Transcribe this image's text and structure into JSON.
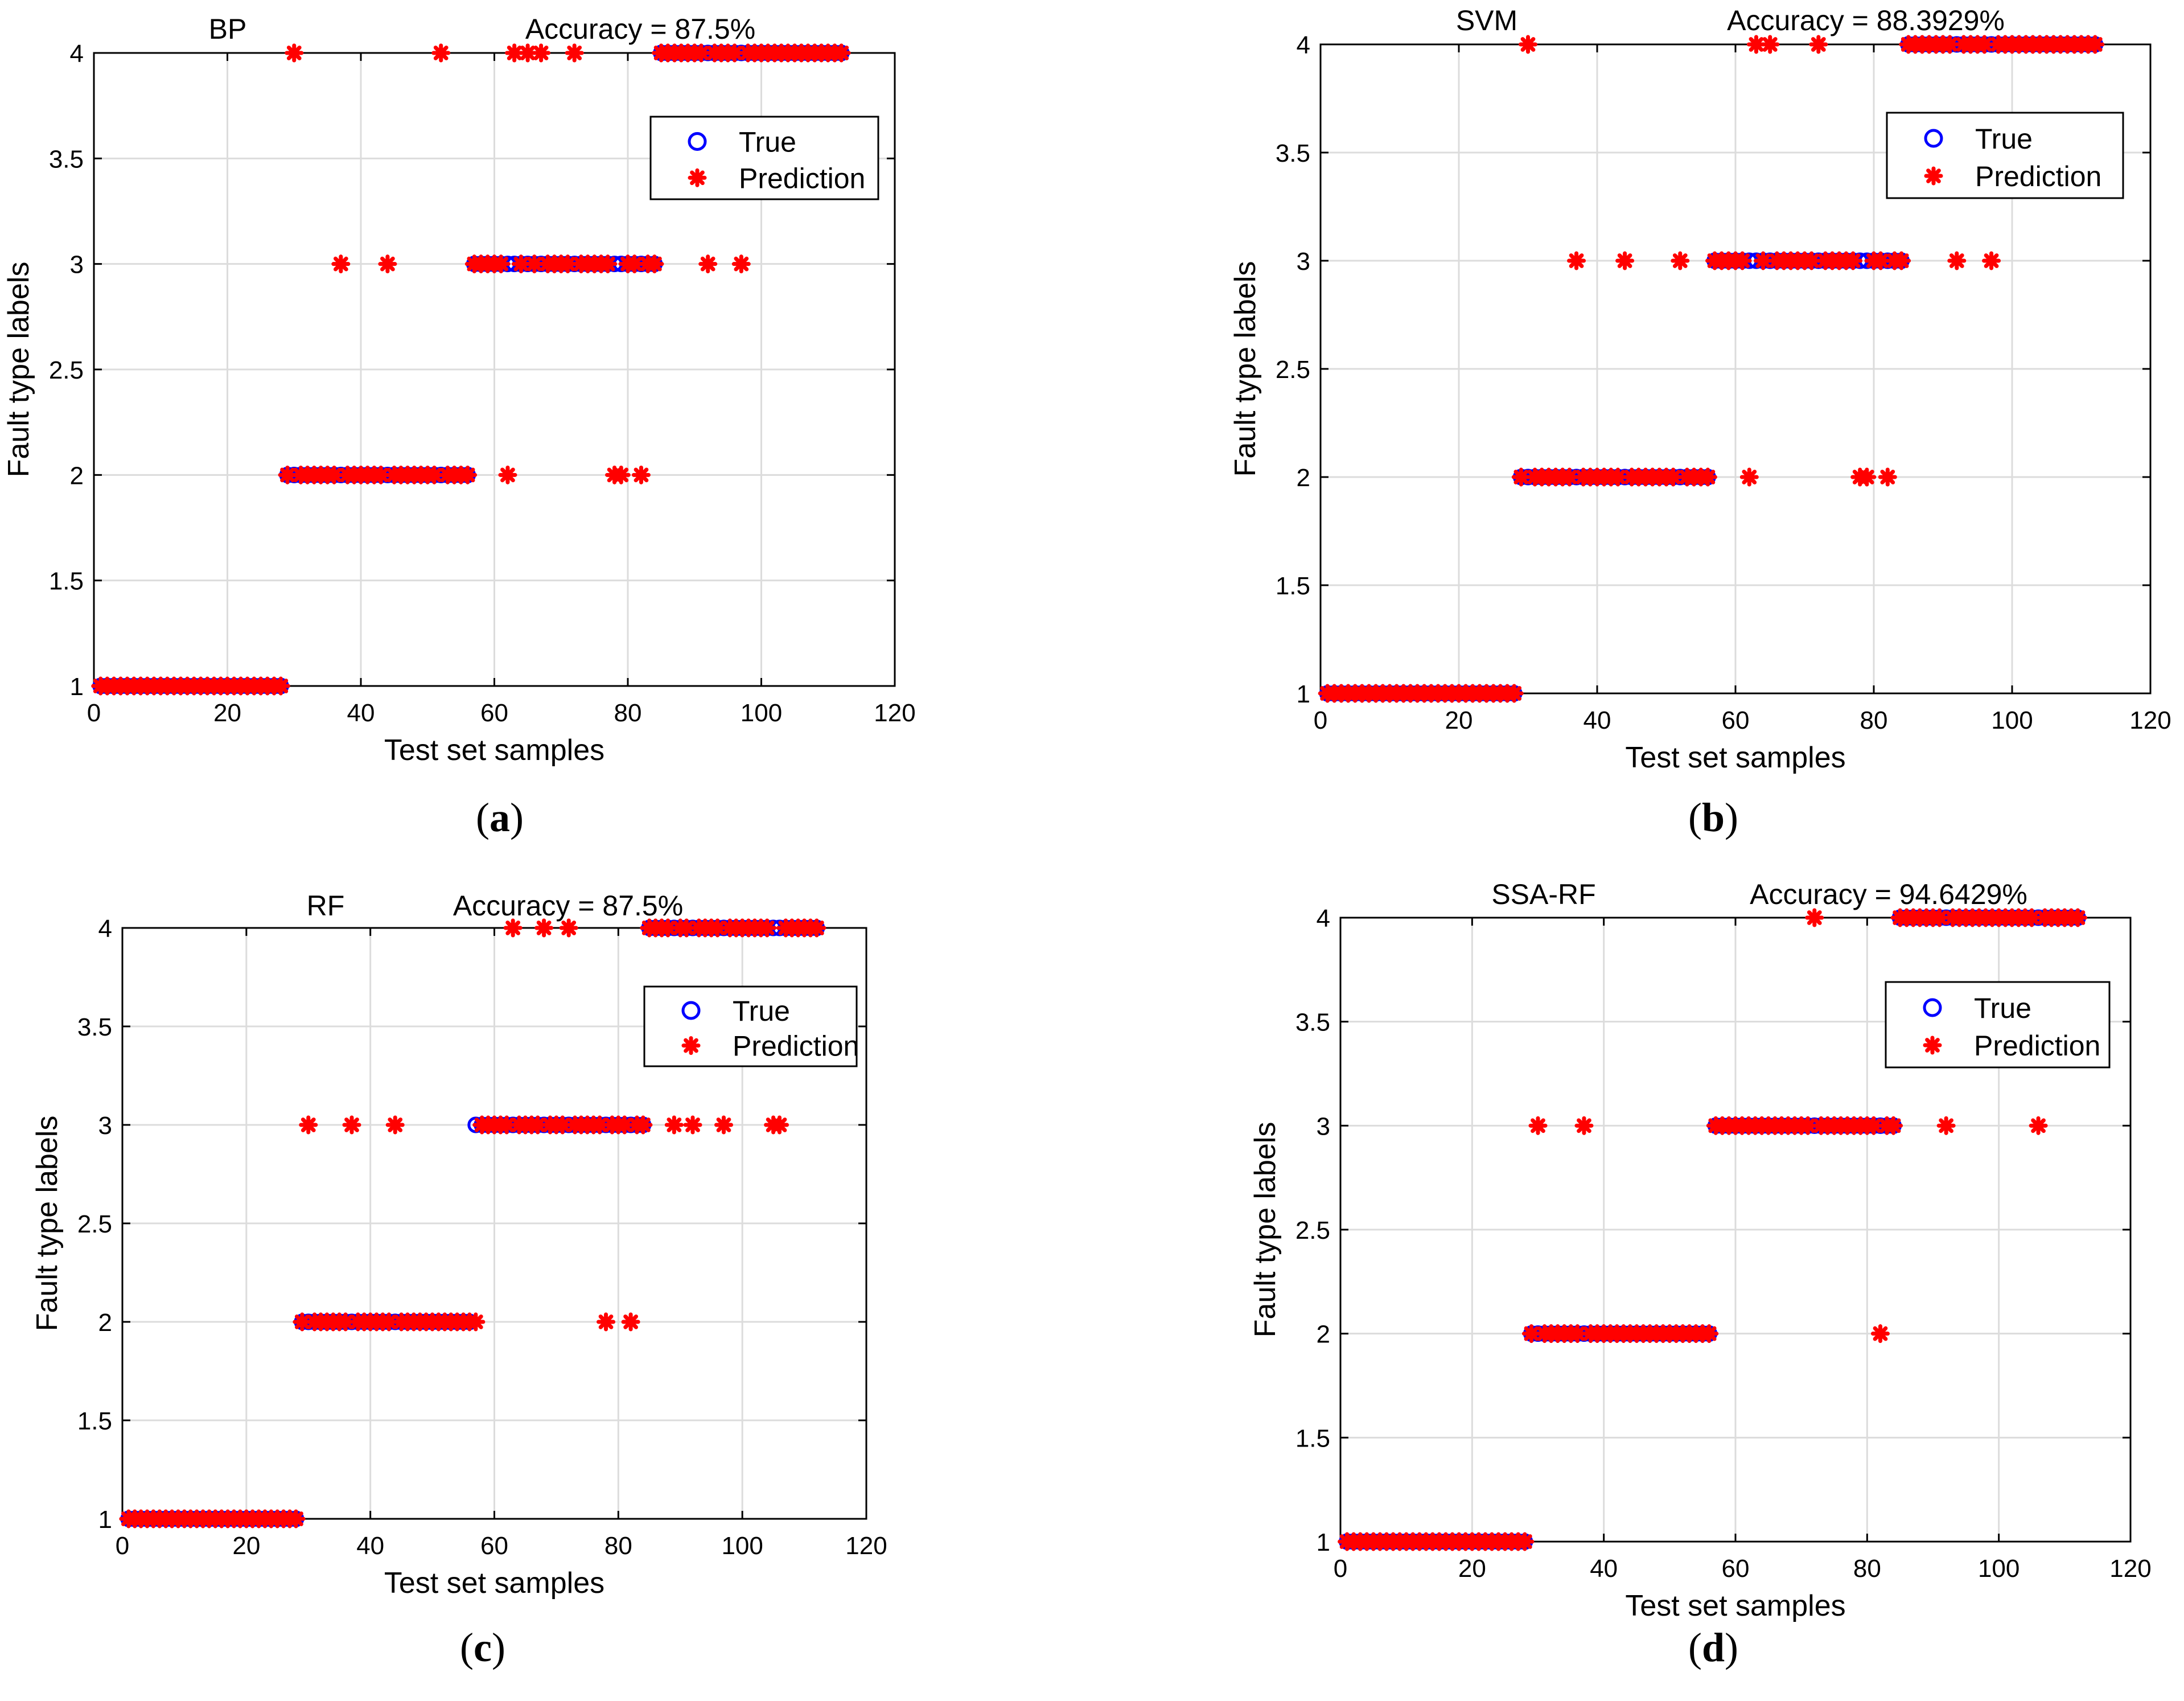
{
  "figure": {
    "captions": [
      {
        "open": "(",
        "letter": "a",
        "close": ")"
      },
      {
        "open": "(",
        "letter": "b",
        "close": ")"
      },
      {
        "open": "(",
        "letter": "c",
        "close": ")"
      },
      {
        "open": "(",
        "letter": "d",
        "close": ")"
      }
    ]
  },
  "colors": {
    "true_marker": "#0000ff",
    "prediction_marker": "#ff0000",
    "grid": "#dcdcdc",
    "axis": "#000000"
  },
  "chart_data": [
    {
      "type": "scatter",
      "title": "BP",
      "annotation": "Accuracy = 87.5%",
      "xlabel": "Test set samples",
      "ylabel": "Fault type labels",
      "xlim": [
        0,
        120
      ],
      "ylim": [
        1,
        4
      ],
      "xticks": [
        0,
        20,
        40,
        60,
        80,
        100,
        120
      ],
      "yticks": [
        1,
        1.5,
        2,
        2.5,
        3,
        3.5,
        4
      ],
      "grid": true,
      "legend": {
        "position": "top-right",
        "entries": [
          "True",
          "Prediction"
        ]
      },
      "series": [
        {
          "name": "True",
          "marker": "circle",
          "segments": [
            [
              1,
              28,
              1
            ],
            [
              29,
              56,
              2
            ],
            [
              57,
              84,
              3
            ],
            [
              85,
              112,
              4
            ]
          ]
        },
        {
          "name": "Prediction",
          "marker": "asterisk",
          "segments": [
            [
              1,
              28,
              1
            ],
            [
              29,
              56,
              2
            ],
            [
              57,
              84,
              3
            ],
            [
              85,
              112,
              4
            ]
          ],
          "exceptions": [
            [
              30,
              4
            ],
            [
              37,
              3
            ],
            [
              44,
              3
            ],
            [
              52,
              4
            ],
            [
              62,
              2
            ],
            [
              63,
              4
            ],
            [
              65,
              4
            ],
            [
              67,
              4
            ],
            [
              72,
              4
            ],
            [
              78,
              2
            ],
            [
              79,
              2
            ],
            [
              82,
              2
            ],
            [
              92,
              3
            ],
            [
              97,
              3
            ]
          ]
        }
      ]
    },
    {
      "type": "scatter",
      "title": "SVM",
      "annotation": "Accuracy = 88.3929%",
      "xlabel": "Test set samples",
      "ylabel": "Fault type labels",
      "xlim": [
        0,
        120
      ],
      "ylim": [
        1,
        4
      ],
      "xticks": [
        0,
        20,
        40,
        60,
        80,
        100,
        120
      ],
      "yticks": [
        1,
        1.5,
        2,
        2.5,
        3,
        3.5,
        4
      ],
      "grid": true,
      "legend": {
        "position": "top-right",
        "entries": [
          "True",
          "Prediction"
        ]
      },
      "series": [
        {
          "name": "True",
          "marker": "circle",
          "segments": [
            [
              1,
              28,
              1
            ],
            [
              29,
              56,
              2
            ],
            [
              57,
              84,
              3
            ],
            [
              85,
              112,
              4
            ]
          ]
        },
        {
          "name": "Prediction",
          "marker": "asterisk",
          "segments": [
            [
              1,
              28,
              1
            ],
            [
              29,
              56,
              2
            ],
            [
              57,
              84,
              3
            ],
            [
              85,
              112,
              4
            ]
          ],
          "exceptions": [
            [
              30,
              4
            ],
            [
              37,
              3
            ],
            [
              44,
              3
            ],
            [
              52,
              3
            ],
            [
              62,
              2
            ],
            [
              63,
              4
            ],
            [
              65,
              4
            ],
            [
              72,
              4
            ],
            [
              78,
              2
            ],
            [
              79,
              2
            ],
            [
              82,
              2
            ],
            [
              92,
              3
            ],
            [
              97,
              3
            ]
          ]
        }
      ]
    },
    {
      "type": "scatter",
      "title": "RF",
      "annotation": "Accuracy = 87.5%",
      "xlabel": "Test set samples",
      "ylabel": "Fault type labels",
      "xlim": [
        0,
        120
      ],
      "ylim": [
        1,
        4
      ],
      "xticks": [
        0,
        20,
        40,
        60,
        80,
        100,
        120
      ],
      "yticks": [
        1,
        1.5,
        2,
        2.5,
        3,
        3.5,
        4
      ],
      "grid": true,
      "legend": {
        "position": "top-right",
        "entries": [
          "True",
          "Prediction"
        ]
      },
      "series": [
        {
          "name": "True",
          "marker": "circle",
          "segments": [
            [
              1,
              28,
              1
            ],
            [
              29,
              56,
              2
            ],
            [
              57,
              84,
              3
            ],
            [
              85,
              112,
              4
            ]
          ]
        },
        {
          "name": "Prediction",
          "marker": "asterisk",
          "segments": [
            [
              1,
              28,
              1
            ],
            [
              29,
              56,
              2
            ],
            [
              57,
              84,
              3
            ],
            [
              85,
              112,
              4
            ]
          ],
          "exceptions": [
            [
              30,
              3
            ],
            [
              37,
              3
            ],
            [
              44,
              3
            ],
            [
              57,
              2
            ],
            [
              63,
              4
            ],
            [
              68,
              4
            ],
            [
              72,
              4
            ],
            [
              78,
              2
            ],
            [
              82,
              2
            ],
            [
              89,
              3
            ],
            [
              92,
              3
            ],
            [
              97,
              3
            ],
            [
              105,
              3
            ],
            [
              106,
              3
            ]
          ]
        }
      ]
    },
    {
      "type": "scatter",
      "title": "SSA-RF",
      "annotation": "Accuracy = 94.6429%",
      "xlabel": "Test set samples",
      "ylabel": "Fault type labels",
      "xlim": [
        0,
        120
      ],
      "ylim": [
        1,
        4
      ],
      "xticks": [
        0,
        20,
        40,
        60,
        80,
        100,
        120
      ],
      "yticks": [
        1,
        1.5,
        2,
        2.5,
        3,
        3.5,
        4
      ],
      "grid": true,
      "legend": {
        "position": "top-right",
        "entries": [
          "True",
          "Prediction"
        ]
      },
      "series": [
        {
          "name": "True",
          "marker": "circle",
          "segments": [
            [
              1,
              28,
              1
            ],
            [
              29,
              56,
              2
            ],
            [
              57,
              84,
              3
            ],
            [
              85,
              112,
              4
            ]
          ]
        },
        {
          "name": "Prediction",
          "marker": "asterisk",
          "segments": [
            [
              1,
              28,
              1
            ],
            [
              29,
              56,
              2
            ],
            [
              57,
              84,
              3
            ],
            [
              85,
              112,
              4
            ]
          ],
          "exceptions": [
            [
              30,
              3
            ],
            [
              37,
              3
            ],
            [
              72,
              4
            ],
            [
              82,
              2
            ],
            [
              92,
              3
            ],
            [
              106,
              3
            ]
          ]
        }
      ]
    }
  ]
}
